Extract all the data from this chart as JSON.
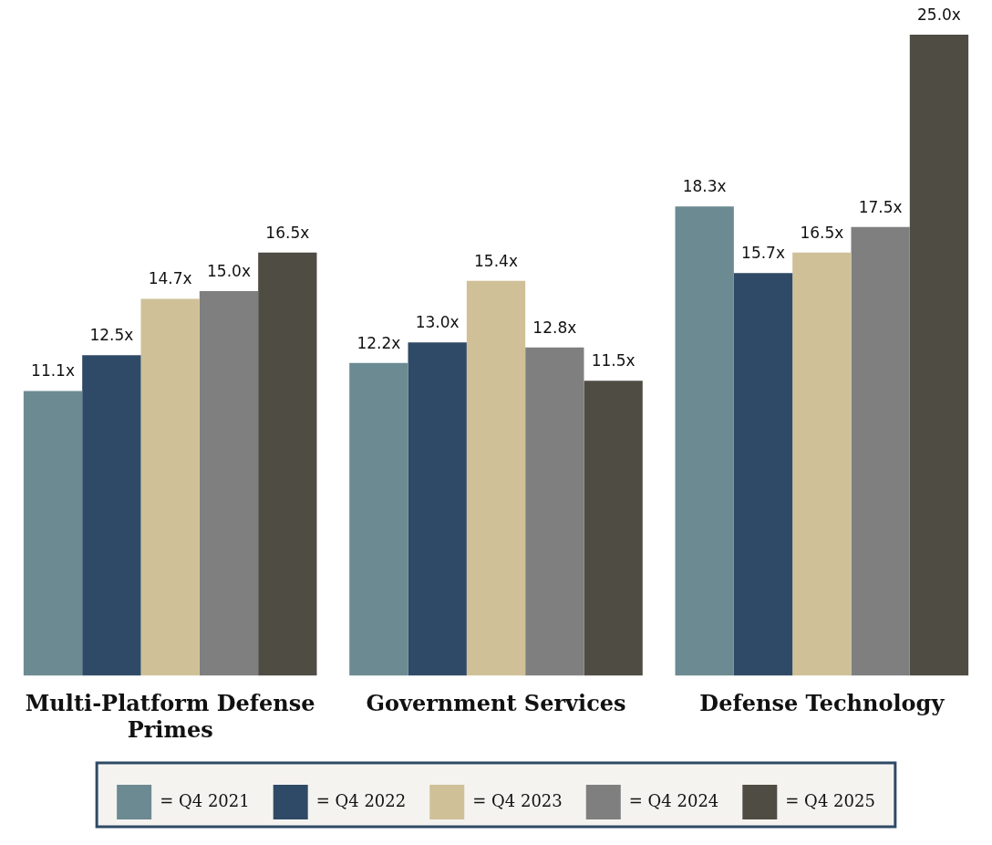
{
  "chart_data": {
    "type": "bar",
    "categories": [
      "Multi-Platform Defense Primes",
      "Government Services",
      "Defense Technology"
    ],
    "tick_labels": "x",
    "grid": false,
    "legend": "bottom",
    "series": [
      {
        "name": "= Q4 2021",
        "color": "#6b8a91",
        "values": [
          11.1,
          12.2,
          18.3
        ],
        "value_labels": [
          "11.1x",
          "12.2x",
          "18.3x"
        ]
      },
      {
        "name": "= Q4 2022",
        "color": "#2f4a66",
        "values": [
          12.5,
          13.0,
          15.7
        ],
        "value_labels": [
          "12.5x",
          "13.0x",
          "15.7x"
        ]
      },
      {
        "name": "= Q4 2023",
        "color": "#cfc098",
        "values": [
          14.7,
          15.4,
          16.5
        ],
        "value_labels": [
          "14.7x",
          "15.4x",
          "16.5x"
        ]
      },
      {
        "name": "= Q4 2024",
        "color": "#7f7f7f",
        "values": [
          15.0,
          12.8,
          17.5
        ],
        "value_labels": [
          "15.0x",
          "12.8x",
          "17.5x"
        ]
      },
      {
        "name": "= Q4 2025",
        "color": "#4f4c44",
        "values": [
          16.5,
          11.5,
          25.0
        ],
        "value_labels": [
          "16.5x",
          "11.5x",
          "25.0x"
        ]
      }
    ]
  }
}
